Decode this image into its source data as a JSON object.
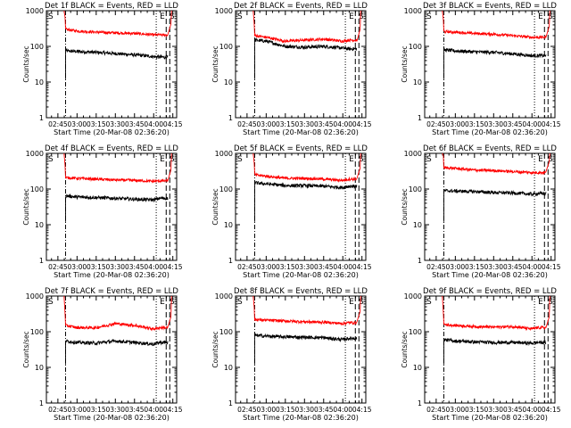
{
  "figure": {
    "xlabel": "Start Time (20-Mar-08 02:36:20)",
    "ylabel": "Counts/sec",
    "x_tick_labels": [
      "02:45",
      "03:00",
      "03:15",
      "03:30",
      "03:45",
      "04:00",
      "04:15"
    ],
    "y_tick_labels": [
      "1",
      "10",
      "100",
      "1000"
    ],
    "marker_labels": [
      "S",
      "E",
      "S"
    ],
    "colors": {
      "events": "#000000",
      "lld": "#ff0000",
      "axes": "#000000",
      "background": "#ffffff"
    }
  },
  "chart_data": [
    {
      "type": "line",
      "title": "Det 1f BLACK = Events, RED = LLD",
      "xlabel": "Start Time (20-Mar-08 02:36:20)",
      "ylabel": "Counts/sec",
      "y_scale": "log",
      "ylim": [
        1,
        1000
      ],
      "xlim": [
        "02:36",
        "04:18"
      ],
      "x": [
        "02:51",
        "03:00",
        "03:15",
        "03:30",
        "03:45",
        "04:00",
        "04:05"
      ],
      "series": [
        {
          "name": "Events",
          "values": [
            75,
            72,
            68,
            63,
            58,
            52,
            50
          ]
        },
        {
          "name": "LLD",
          "values": [
            300,
            270,
            250,
            240,
            230,
            210,
            210
          ]
        }
      ],
      "markers": {
        "S": [
          "02:51",
          "04:14"
        ],
        "E": "04:02"
      }
    },
    {
      "type": "line",
      "title": "Det 2f BLACK = Events, RED = LLD",
      "xlabel": "Start Time (20-Mar-08 02:36:20)",
      "ylabel": "Counts/sec",
      "y_scale": "log",
      "ylim": [
        1,
        1000
      ],
      "xlim": [
        "02:36",
        "04:18"
      ],
      "x": [
        "02:51",
        "03:00",
        "03:15",
        "03:30",
        "03:45",
        "04:00",
        "04:05"
      ],
      "series": [
        {
          "name": "Events",
          "values": [
            150,
            140,
            100,
            95,
            100,
            90,
            85
          ]
        },
        {
          "name": "LLD",
          "values": [
            200,
            180,
            140,
            150,
            160,
            140,
            150
          ]
        }
      ],
      "markers": {
        "S": [
          "02:51",
          "04:14"
        ],
        "E": "04:02"
      }
    },
    {
      "type": "line",
      "title": "Det 3f BLACK = Events, RED = LLD",
      "xlabel": "Start Time (20-Mar-08 02:36:20)",
      "ylabel": "Counts/sec",
      "y_scale": "log",
      "ylim": [
        1,
        1000
      ],
      "xlim": [
        "02:36",
        "04:18"
      ],
      "x": [
        "02:51",
        "03:00",
        "03:15",
        "03:30",
        "03:45",
        "04:00",
        "04:05"
      ],
      "series": [
        {
          "name": "Events",
          "values": [
            80,
            75,
            70,
            68,
            62,
            55,
            55
          ]
        },
        {
          "name": "LLD",
          "values": [
            260,
            250,
            230,
            220,
            200,
            180,
            180
          ]
        }
      ],
      "markers": {
        "S": [
          "02:51",
          "04:14"
        ],
        "E": "04:02"
      }
    },
    {
      "type": "line",
      "title": "Det 4f BLACK = Events, RED = LLD",
      "xlabel": "Start Time (20-Mar-08 02:36:20)",
      "ylabel": "Counts/sec",
      "y_scale": "log",
      "ylim": [
        1,
        1000
      ],
      "xlim": [
        "02:36",
        "04:18"
      ],
      "x": [
        "02:51",
        "03:00",
        "03:15",
        "03:30",
        "03:45",
        "04:00",
        "04:05"
      ],
      "series": [
        {
          "name": "Events",
          "values": [
            65,
            60,
            58,
            55,
            52,
            50,
            55
          ]
        },
        {
          "name": "LLD",
          "values": [
            210,
            200,
            190,
            180,
            175,
            165,
            170
          ]
        }
      ],
      "markers": {
        "S": [
          "02:51",
          "04:14"
        ],
        "E": "04:02"
      }
    },
    {
      "type": "line",
      "title": "Det 5f BLACK = Events, RED = LLD",
      "xlabel": "Start Time (20-Mar-08 02:36:20)",
      "ylabel": "Counts/sec",
      "y_scale": "log",
      "ylim": [
        1,
        1000
      ],
      "xlim": [
        "02:36",
        "04:18"
      ],
      "x": [
        "02:51",
        "03:00",
        "03:15",
        "03:30",
        "03:45",
        "04:00",
        "04:05"
      ],
      "series": [
        {
          "name": "Events",
          "values": [
            150,
            140,
            125,
            125,
            120,
            110,
            120
          ]
        },
        {
          "name": "LLD",
          "values": [
            250,
            230,
            200,
            200,
            190,
            175,
            190
          ]
        }
      ],
      "markers": {
        "S": [
          "02:51",
          "04:14"
        ],
        "E": "04:02"
      }
    },
    {
      "type": "line",
      "title": "Det 6f BLACK = Events, RED = LLD",
      "xlabel": "Start Time (20-Mar-08 02:36:20)",
      "ylabel": "Counts/sec",
      "y_scale": "log",
      "ylim": [
        1,
        1000
      ],
      "xlim": [
        "02:36",
        "04:18"
      ],
      "x": [
        "02:51",
        "03:00",
        "03:15",
        "03:30",
        "03:45",
        "04:00",
        "04:05"
      ],
      "series": [
        {
          "name": "Events",
          "values": [
            90,
            88,
            85,
            80,
            78,
            72,
            75
          ]
        },
        {
          "name": "LLD",
          "values": [
            400,
            380,
            340,
            330,
            310,
            290,
            290
          ]
        }
      ],
      "markers": {
        "S": [
          "02:51",
          "04:14"
        ],
        "E": "04:02"
      }
    },
    {
      "type": "line",
      "title": "Det 7f BLACK = Events, RED = LLD",
      "xlabel": "Start Time (20-Mar-08 02:36:20)",
      "ylabel": "Counts/sec",
      "y_scale": "log",
      "ylim": [
        1,
        1000
      ],
      "xlim": [
        "02:36",
        "04:18"
      ],
      "x": [
        "02:51",
        "03:00",
        "03:15",
        "03:30",
        "03:45",
        "04:00",
        "04:05"
      ],
      "series": [
        {
          "name": "Events",
          "values": [
            55,
            50,
            48,
            55,
            50,
            45,
            50
          ]
        },
        {
          "name": "LLD",
          "values": [
            150,
            130,
            130,
            170,
            150,
            120,
            130
          ]
        }
      ],
      "markers": {
        "S": [
          "02:51",
          "04:14"
        ],
        "E": "04:02"
      }
    },
    {
      "type": "line",
      "title": "Det 8f BLACK = Events, RED = LLD",
      "xlabel": "Start Time (20-Mar-08 02:36:20)",
      "ylabel": "Counts/sec",
      "y_scale": "log",
      "ylim": [
        1,
        1000
      ],
      "xlim": [
        "02:36",
        "04:18"
      ],
      "x": [
        "02:51",
        "03:00",
        "03:15",
        "03:30",
        "03:45",
        "04:00",
        "04:05"
      ],
      "series": [
        {
          "name": "Events",
          "values": [
            80,
            75,
            72,
            70,
            68,
            60,
            65
          ]
        },
        {
          "name": "LLD",
          "values": [
            220,
            210,
            200,
            190,
            185,
            170,
            180
          ]
        }
      ],
      "markers": {
        "S": [
          "02:51",
          "04:14"
        ],
        "E": "04:02"
      }
    },
    {
      "type": "line",
      "title": "Det 9f BLACK = Events, RED = LLD",
      "xlabel": "Start Time (20-Mar-08 02:36:20)",
      "ylabel": "Counts/sec",
      "y_scale": "log",
      "ylim": [
        1,
        1000
      ],
      "xlim": [
        "02:36",
        "04:18"
      ],
      "x": [
        "02:51",
        "03:00",
        "03:15",
        "03:30",
        "03:45",
        "04:00",
        "04:05"
      ],
      "series": [
        {
          "name": "Events",
          "values": [
            60,
            55,
            52,
            50,
            50,
            48,
            50
          ]
        },
        {
          "name": "LLD",
          "values": [
            160,
            150,
            140,
            135,
            140,
            120,
            130
          ]
        }
      ],
      "markers": {
        "S": [
          "02:51",
          "04:14"
        ],
        "E": "04:02"
      }
    }
  ]
}
